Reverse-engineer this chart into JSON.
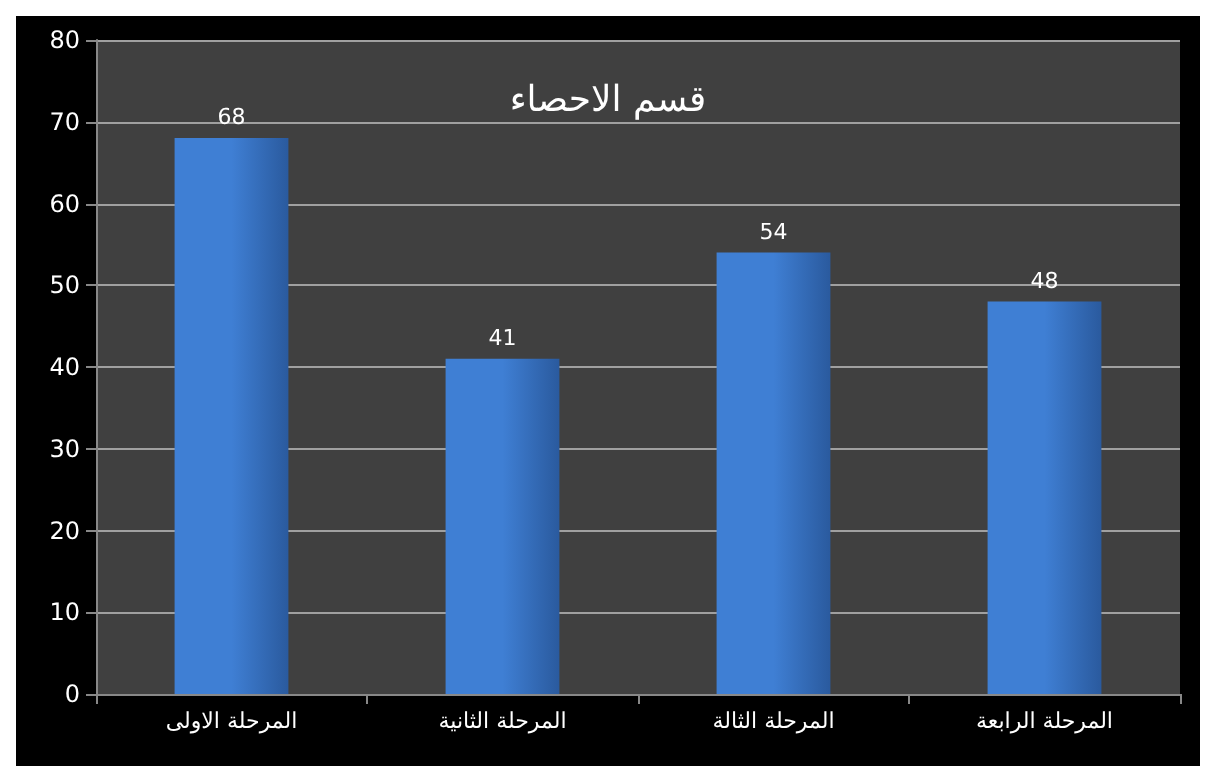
{
  "chart_data": {
    "type": "bar",
    "title": "قسم الاحصاء",
    "categories": [
      "المرحلة الاولى",
      "المرحلة الثانية",
      "المرحلة الثالة",
      "المرحلة الرابعة"
    ],
    "values": [
      68,
      41,
      54,
      48
    ],
    "color": "#3f7fd4",
    "ylim": [
      0,
      80
    ],
    "yticks": [
      0,
      10,
      20,
      30,
      40,
      50,
      60,
      70,
      80
    ],
    "grid": "y",
    "data_labels": true
  }
}
